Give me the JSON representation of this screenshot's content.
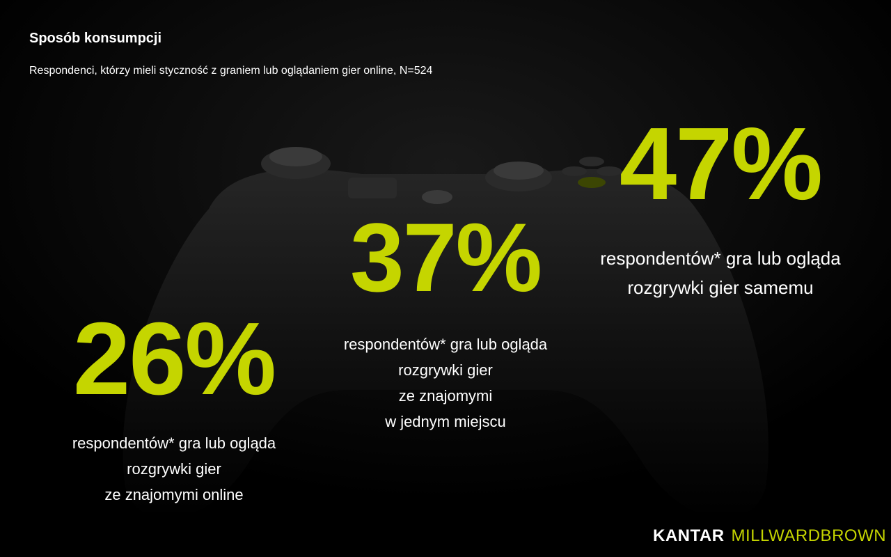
{
  "header": {
    "title": "Sposób konsumpcji",
    "subtitle": "Respondenci, którzy mieli styczność z graniem lub oglądaniem gier online, N=524"
  },
  "stats": [
    {
      "value": "26%",
      "lines": [
        "respondentów* gra lub ogląda",
        "rozgrywki gier",
        "ze znajomymi online"
      ]
    },
    {
      "value": "37%",
      "lines": [
        "respondentów* gra lub ogląda",
        "rozgrywki gier",
        "ze znajomymi",
        "w jednym miejscu"
      ]
    },
    {
      "value": "47%",
      "lines": [
        "respondentów* gra lub ogląda",
        "rozgrywki gier samemu"
      ]
    }
  ],
  "logo": {
    "part1": "KANTAR",
    "part2": "MILLWARDBROWN"
  },
  "colors": {
    "accent": "#c5d500",
    "background": "#000000",
    "text": "#ffffff"
  },
  "background_image": "dark-game-controller-photo"
}
